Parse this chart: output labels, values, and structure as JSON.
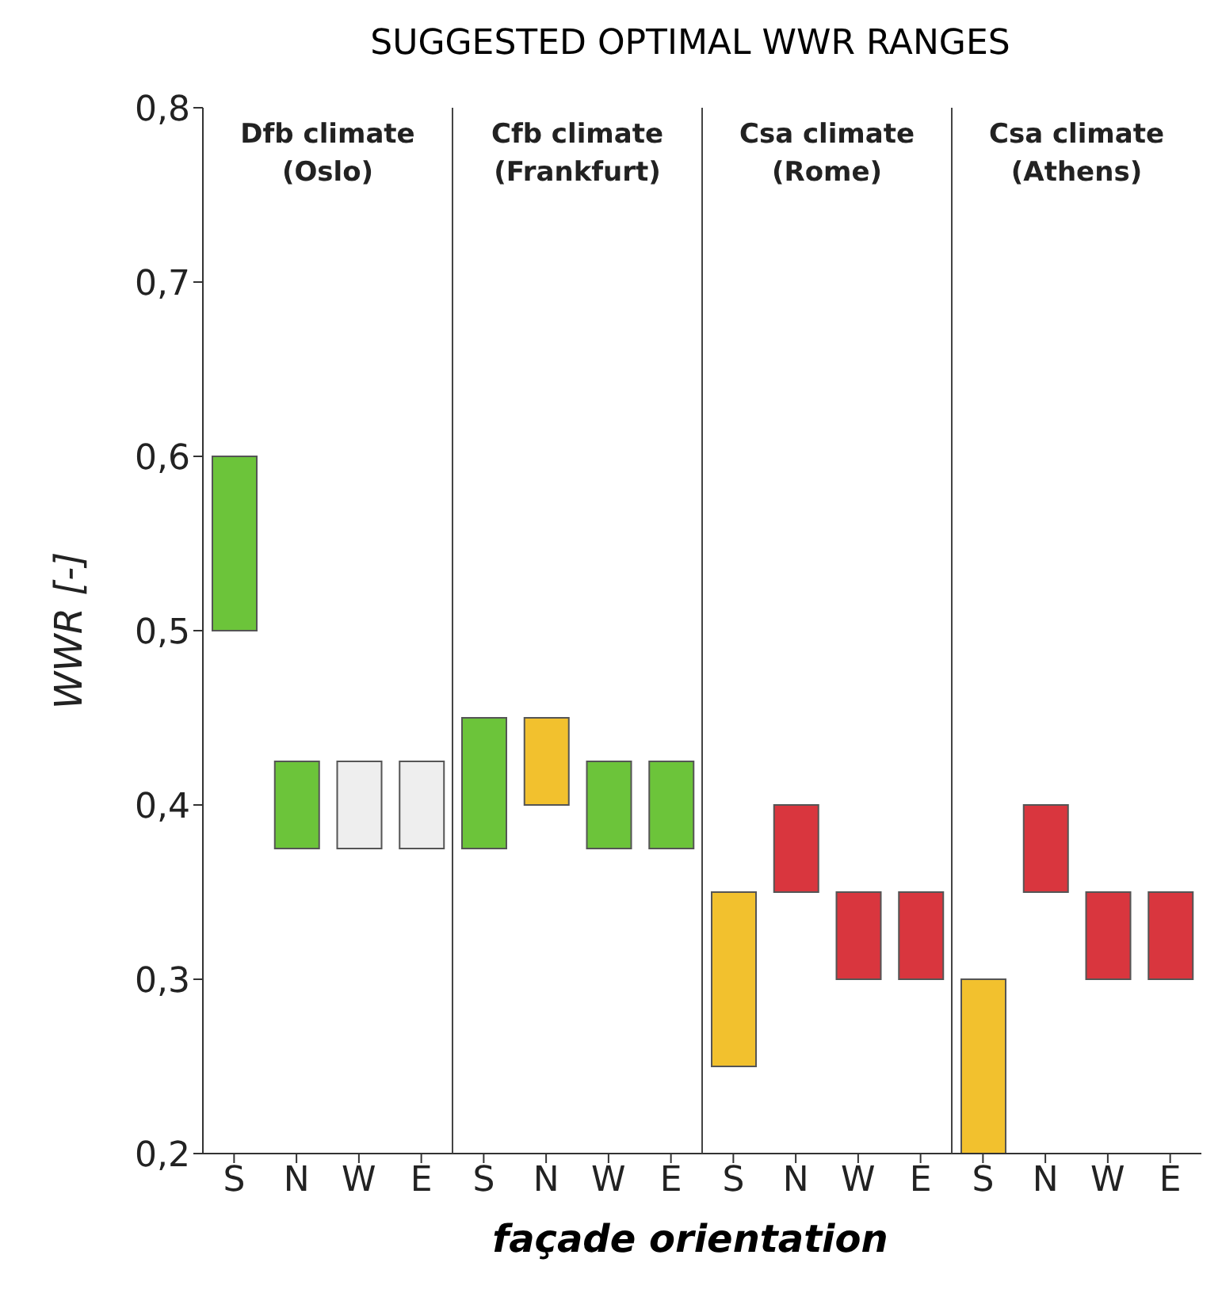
{
  "chart_data": {
    "type": "bar",
    "title": "SUGGESTED OPTIMAL WWR RANGES",
    "xlabel": "façade orientation",
    "ylabel": "WWR [-]",
    "categories": [
      "S",
      "N",
      "W",
      "E",
      "S",
      "N",
      "W",
      "E",
      "S",
      "N",
      "W",
      "E",
      "S",
      "N",
      "W",
      "E"
    ],
    "base": [
      0.5,
      0.375,
      0.375,
      0.375,
      0.375,
      0.4,
      0.375,
      0.375,
      0.25,
      0.35,
      0.3,
      0.3,
      0.2,
      0.35,
      0.3,
      0.3
    ],
    "values": [
      0.1,
      0.05,
      0.05,
      0.05,
      0.075,
      0.05,
      0.05,
      0.05,
      0.1,
      0.05,
      0.05,
      0.05,
      0.1,
      0.05,
      0.05,
      0.05
    ],
    "colors": [
      "#6cc43a",
      "#6cc43a",
      "#eeeeee",
      "#eeeeee",
      "#6cc43a",
      "#f2c12e",
      "#6cc43a",
      "#6cc43a",
      "#f2c12e",
      "#d9363e",
      "#d9363e",
      "#d9363e",
      "#f2c12e",
      "#d9363e",
      "#d9363e",
      "#d9363e"
    ],
    "ylim": [
      0.2,
      0.8
    ],
    "yticks": [
      {
        "value": 0.2,
        "label": "0,2"
      },
      {
        "value": 0.3,
        "label": "0,3"
      },
      {
        "value": 0.4,
        "label": "0,4"
      },
      {
        "value": 0.5,
        "label": "0,5"
      },
      {
        "value": 0.6,
        "label": "0,6"
      },
      {
        "value": 0.7,
        "label": "0,7"
      },
      {
        "value": 0.8,
        "label": "0,8"
      }
    ],
    "annotations": [
      "Dfb climate\n(Oslo)",
      "Cfb climate\n(Frankfurt)",
      "Csa climate\n(Rome)",
      "Csa climate\n(Athens)"
    ],
    "grid": false,
    "legend": false
  }
}
